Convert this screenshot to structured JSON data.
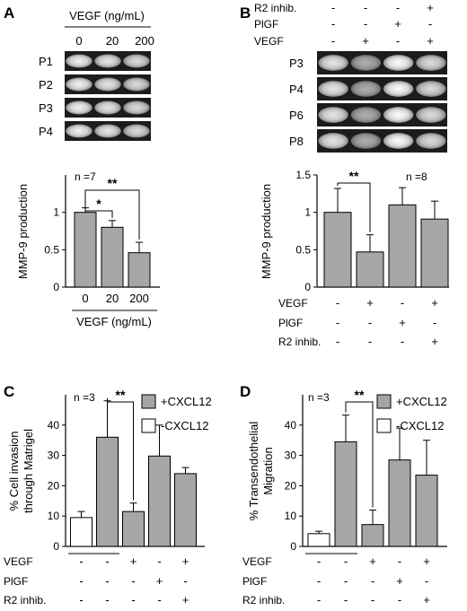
{
  "colors": {
    "filled_bar": "#a6a6a6",
    "open_bar": "#ffffff",
    "axis": "#000000",
    "gel_bg": "#1c1c1c",
    "gel_band": "#e6e6e6"
  },
  "panel_A": {
    "letter": "A",
    "gel_header": "VEGF (ng/mL)",
    "gel_columns": [
      "0",
      "20",
      "200"
    ],
    "gel_rows": [
      "P1",
      "P2",
      "P3",
      "P4"
    ]
  },
  "panel_B": {
    "letter": "B",
    "treatment_header": [
      {
        "label": "R2 inhib.",
        "signs": [
          "-",
          "-",
          "-",
          "+"
        ]
      },
      {
        "label": "PlGF",
        "signs": [
          "-",
          "-",
          "+",
          "-"
        ]
      },
      {
        "label": "VEGF",
        "signs": [
          "-",
          "+",
          "-",
          "+"
        ]
      }
    ],
    "gel_rows": [
      "P3",
      "P4",
      "P6",
      "P8"
    ]
  },
  "panel_C": {
    "letter": "C"
  },
  "panel_D": {
    "letter": "D"
  },
  "chart_data": [
    {
      "panel": "A",
      "type": "bar",
      "categories": [
        "0",
        "20",
        "200"
      ],
      "values": [
        1.0,
        0.8,
        0.46
      ],
      "errors": [
        0.06,
        0.09,
        0.14
      ],
      "ylabel": "MMP-9 production",
      "xlabel": "VEGF (ng/mL)",
      "ylim": [
        0,
        1.5
      ],
      "yticks": [
        "0",
        "0.5",
        "1"
      ],
      "n_label": "n =7",
      "significance": [
        {
          "from": 0,
          "to": 1,
          "label": "*"
        },
        {
          "from": 0,
          "to": 2,
          "label": "**"
        }
      ],
      "legend": "none"
    },
    {
      "panel": "B",
      "type": "bar",
      "categories": [
        "1",
        "2",
        "3",
        "4"
      ],
      "values": [
        1.0,
        0.47,
        1.1,
        0.91
      ],
      "errors": [
        0.32,
        0.23,
        0.23,
        0.24
      ],
      "ylabel": "MMP-9 production",
      "ylim": [
        0,
        1.5
      ],
      "yticks": [
        "0",
        "0.5",
        "1",
        "1.5"
      ],
      "n_label": "n =8",
      "significance": [
        {
          "from": 0,
          "to": 1,
          "label": "**"
        }
      ],
      "condition_rows": [
        {
          "label": "VEGF",
          "signs": [
            "-",
            "+",
            "-",
            "+"
          ]
        },
        {
          "label": "PlGF",
          "signs": [
            "-",
            "-",
            "+",
            "-"
          ]
        },
        {
          "label": "R2 inhib.",
          "signs": [
            "-",
            "-",
            "-",
            "+"
          ]
        }
      ],
      "legend": "none"
    },
    {
      "panel": "C",
      "type": "bar",
      "categories": [
        "1",
        "2",
        "3",
        "4",
        "5"
      ],
      "values": [
        9.5,
        36.0,
        11.5,
        29.8,
        24.0
      ],
      "errors": [
        2.0,
        12.0,
        2.8,
        10.2,
        2.0
      ],
      "fills": [
        "open",
        "filled",
        "filled",
        "filled",
        "filled"
      ],
      "ylabel": [
        "% Cell invasion",
        "through Matrigel"
      ],
      "ylim": [
        0,
        50
      ],
      "yticks": [
        "0",
        "10",
        "20",
        "30",
        "40"
      ],
      "n_label": "n =3",
      "legend_entries": [
        "+CXCL12",
        "-CXCL12"
      ],
      "legend": "top-right",
      "significance": [
        {
          "from": 1,
          "to": 2,
          "label": "**"
        }
      ],
      "condition_rows": [
        {
          "label": "VEGF",
          "signs": [
            "-",
            "-",
            "+",
            "-",
            "+"
          ]
        },
        {
          "label": "PlGF",
          "signs": [
            "-",
            "-",
            "-",
            "+",
            "-"
          ]
        },
        {
          "label": "R2 inhib.",
          "signs": [
            "-",
            "-",
            "-",
            "-",
            "+"
          ]
        }
      ]
    },
    {
      "panel": "D",
      "type": "bar",
      "categories": [
        "1",
        "2",
        "3",
        "4",
        "5"
      ],
      "values": [
        4.2,
        34.5,
        7.2,
        28.5,
        23.5
      ],
      "errors": [
        0.8,
        8.8,
        4.8,
        10.5,
        11.5
      ],
      "fills": [
        "open",
        "filled",
        "filled",
        "filled",
        "filled"
      ],
      "ylabel": [
        "% Transendothelial",
        "Migration"
      ],
      "ylim": [
        0,
        50
      ],
      "yticks": [
        "0",
        "10",
        "20",
        "30",
        "40"
      ],
      "n_label": "n =3",
      "legend_entries": [
        "+CXCL12",
        "-CXCL12"
      ],
      "legend": "top-right",
      "significance": [
        {
          "from": 1,
          "to": 2,
          "label": "**"
        }
      ],
      "condition_rows": [
        {
          "label": "VEGF",
          "signs": [
            "-",
            "-",
            "+",
            "-",
            "+"
          ]
        },
        {
          "label": "PlGF",
          "signs": [
            "-",
            "-",
            "-",
            "+",
            "-"
          ]
        },
        {
          "label": "R2 inhib.",
          "signs": [
            "-",
            "-",
            "-",
            "-",
            "+"
          ]
        }
      ]
    }
  ]
}
